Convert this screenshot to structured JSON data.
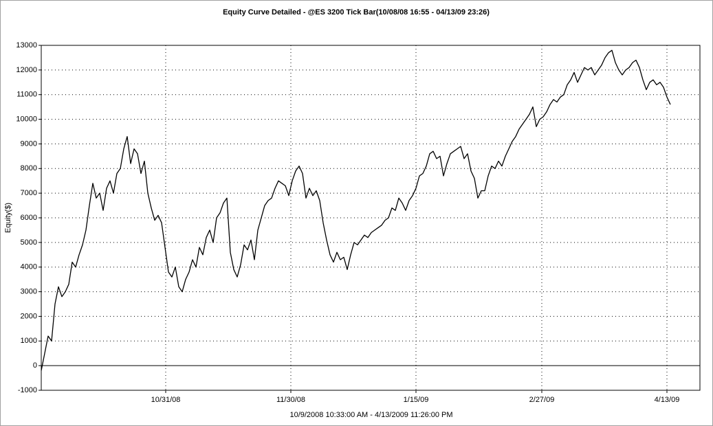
{
  "chart_data": {
    "type": "line",
    "title": "Equity Curve Detailed - @ES 3200 Tick Bar(10/08/08 16:55 - 04/13/09 23:26)",
    "x_label": "10/9/2008 10:33:00 AM - 4/13/2009 11:26:00 PM",
    "y_label": "Equity($)",
    "color": "#000000",
    "grid": true,
    "xlim": [
      0,
      191.6
    ],
    "xticks": [
      {
        "value": 36.2,
        "label": "10/31/08"
      },
      {
        "value": 72.6,
        "label": "11/30/08"
      },
      {
        "value": 109,
        "label": "1/15/09"
      },
      {
        "value": 145.6,
        "label": "2/27/09"
      },
      {
        "value": 182,
        "label": "4/13/09"
      }
    ],
    "ylim": [
      -1000,
      13000
    ],
    "yticks": [
      -1000,
      0,
      1000,
      2000,
      3000,
      4000,
      5000,
      6000,
      7000,
      8000,
      9000,
      10000,
      11000,
      12000,
      13000
    ],
    "values": [
      -200,
      500,
      1200,
      1000,
      2500,
      3200,
      2800,
      3000,
      3300,
      4200,
      4000,
      4500,
      4900,
      5500,
      6500,
      7400,
      6800,
      7000,
      6300,
      7200,
      7500,
      7000,
      7800,
      8000,
      8800,
      9300,
      8200,
      8800,
      8600,
      7800,
      8300,
      7000,
      6400,
      5900,
      6100,
      5800,
      4800,
      3800,
      3600,
      4000,
      3200,
      3000,
      3500,
      3800,
      4300,
      4000,
      4800,
      4500,
      5200,
      5500,
      5000,
      6000,
      6200,
      6600,
      6800,
      4600,
      3900,
      3600,
      4100,
      4900,
      4700,
      5100,
      4300,
      5500,
      6000,
      6500,
      6700,
      6800,
      7200,
      7500,
      7400,
      7300,
      6900,
      7500,
      7900,
      8100,
      7800,
      6800,
      7200,
      6900,
      7100,
      6700,
      5800,
      5100,
      4500,
      4200,
      4600,
      4300,
      4400,
      3900,
      4500,
      5000,
      4900,
      5100,
      5300,
      5200,
      5400,
      5500,
      5600,
      5700,
      5900,
      6000,
      6400,
      6300,
      6800,
      6600,
      6300,
      6700,
      6900,
      7200,
      7700,
      7800,
      8100,
      8600,
      8700,
      8400,
      8500,
      7700,
      8200,
      8600,
      8700,
      8800,
      8900,
      8400,
      8600,
      7900,
      7600,
      6800,
      7100,
      7100,
      7700,
      8100,
      8000,
      8300,
      8100,
      8500,
      8800,
      9100,
      9300,
      9600,
      9800,
      10000,
      10200,
      10500,
      9700,
      10000,
      10100,
      10300,
      10600,
      10800,
      10700,
      10900,
      11000,
      11400,
      11600,
      11900,
      11500,
      11800,
      12100,
      12000,
      12100,
      11800,
      12000,
      12200,
      12500,
      12700,
      12800,
      12300,
      12000,
      11800,
      12000,
      12100,
      12300,
      12400,
      12100,
      11600,
      11200,
      11500,
      11600,
      11400,
      11500,
      11300,
      10900,
      10600
    ]
  }
}
